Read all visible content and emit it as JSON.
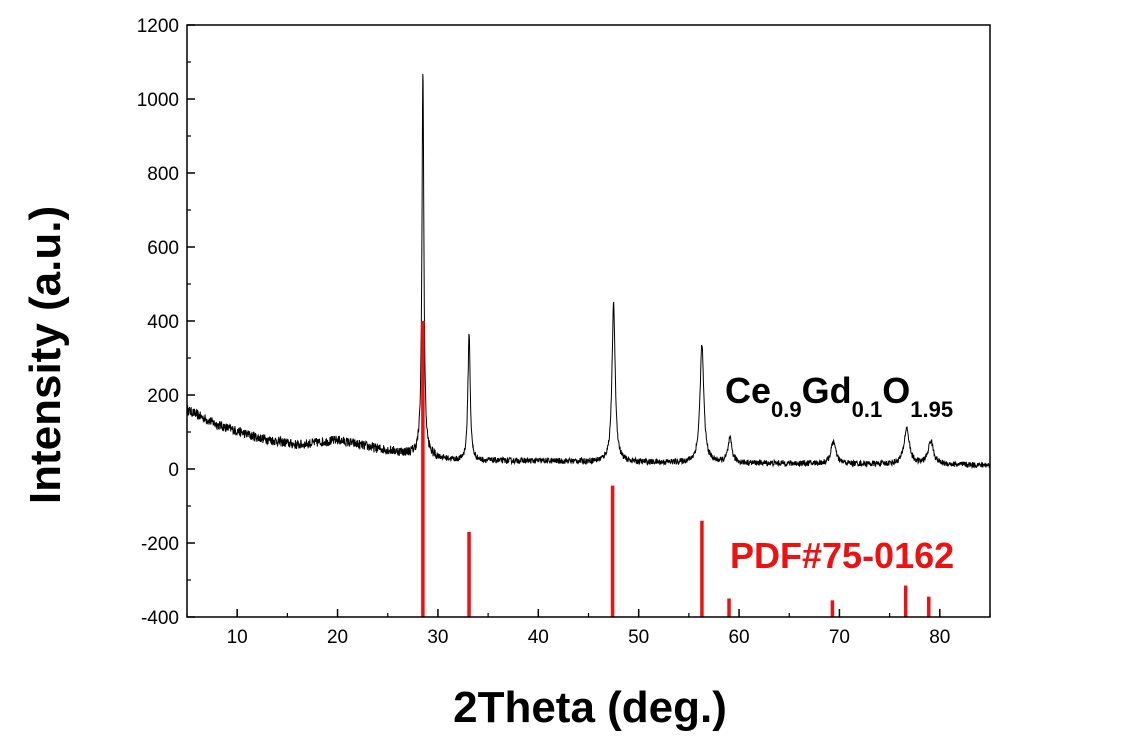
{
  "chart_data": {
    "type": "line",
    "xlabel": "2Theta (deg.)",
    "ylabel": "Intensity (a.u.)",
    "xlim": [
      5,
      85
    ],
    "ylim": [
      -400,
      1200
    ],
    "x_ticks": [
      10,
      20,
      30,
      40,
      50,
      60,
      70,
      80
    ],
    "y_ticks": [
      -400,
      -200,
      0,
      200,
      400,
      600,
      800,
      1000,
      1200
    ],
    "grid": false,
    "series": [
      {
        "name": "Ce0.9Gd0.1O1.95",
        "color": "#000000",
        "baseline": [
          [
            5,
            160
          ],
          [
            8,
            120
          ],
          [
            12,
            85
          ],
          [
            16,
            65
          ],
          [
            20,
            78
          ],
          [
            24,
            55
          ],
          [
            27.5,
            40
          ],
          [
            32,
            22
          ],
          [
            40,
            22
          ],
          [
            50,
            18
          ],
          [
            60,
            16
          ],
          [
            70,
            14
          ],
          [
            80,
            12
          ],
          [
            85,
            10
          ]
        ],
        "peaks": [
          {
            "x": 28.5,
            "height": 1075
          },
          {
            "x": 33.1,
            "height": 370
          },
          {
            "x": 47.5,
            "height": 445
          },
          {
            "x": 56.3,
            "height": 335
          },
          {
            "x": 59.1,
            "height": 80
          },
          {
            "x": 69.4,
            "height": 75
          },
          {
            "x": 76.7,
            "height": 110
          },
          {
            "x": 79.1,
            "height": 75
          }
        ]
      },
      {
        "name": "PDF#75-0162",
        "color": "#ee1111",
        "type": "stick",
        "base": -400,
        "sticks": [
          {
            "x": 28.5,
            "top": 400
          },
          {
            "x": 33.1,
            "top": -170
          },
          {
            "x": 47.4,
            "top": -45
          },
          {
            "x": 56.3,
            "top": -140
          },
          {
            "x": 59.0,
            "top": -350
          },
          {
            "x": 69.3,
            "top": -355
          },
          {
            "x": 76.6,
            "top": -315
          },
          {
            "x": 78.9,
            "top": -345
          }
        ]
      }
    ],
    "annotations": {
      "sample": {
        "base": "Ce",
        "sub1": "0.9",
        "mid": "Gd",
        "sub2": "0.1",
        "end": "O",
        "sub3": "1.95"
      },
      "reference": "PDF#75-0162"
    }
  }
}
